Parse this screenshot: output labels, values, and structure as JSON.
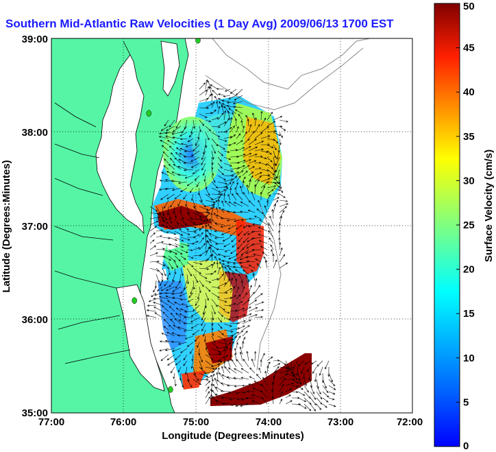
{
  "title": "Southern Mid-Atlantic Raw Velocities (1 Day Avg) 2009/06/13 1700 EST",
  "xlabel": "Longitude (Degrees:Minutes)",
  "ylabel": "Latitude (Degrees:Minutes)",
  "x_ticks": [
    "77:00",
    "76:00",
    "75:00",
    "74:00",
    "73:00",
    "72:00"
  ],
  "y_ticks": [
    "39:00",
    "38:00",
    "37:00",
    "36:00",
    "35:00"
  ],
  "colorbar": {
    "label": "Surface Velocity (cm/s)",
    "ticks": [
      "0",
      "5",
      "10",
      "15",
      "20",
      "25",
      "30",
      "35",
      "40",
      "45",
      "50"
    ],
    "range": [
      0,
      50
    ]
  },
  "colors": {
    "land": "#55f5a5",
    "water": "#ffffff",
    "title": "#1a1aff",
    "station": "#22cc22"
  },
  "chart_data": {
    "type": "heatmap",
    "xlim": [
      -77,
      -72
    ],
    "ylim": [
      35,
      39
    ],
    "grid": true,
    "field": "surface current velocity with vector arrows",
    "stations": [
      {
        "lon": -74.97,
        "lat": 38.98
      },
      {
        "lon": -75.65,
        "lat": 38.2
      },
      {
        "lon": -75.85,
        "lat": 36.2
      },
      {
        "lon": -75.35,
        "lat": 35.25
      }
    ]
  }
}
